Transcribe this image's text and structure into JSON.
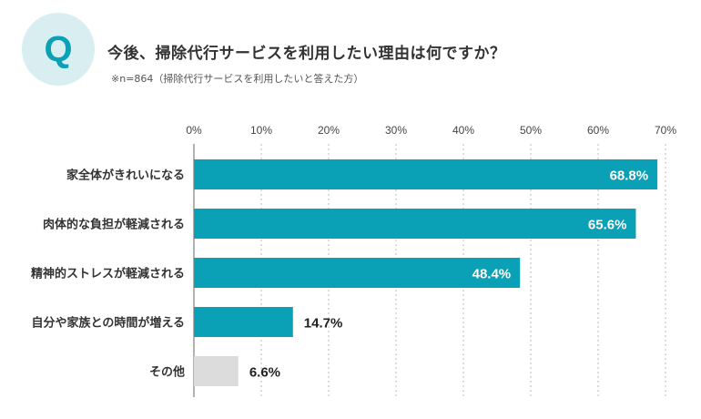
{
  "header": {
    "badge": "Q",
    "title": "今後、掃除代行サービスを利用したい理由は何ですか？",
    "note": "※n=864（掃除代行サービスを利用したいと答えた方）"
  },
  "colors": {
    "primary": "#0aa0b5",
    "other": "#dcdcdc",
    "badge_bg": "#d9eef0",
    "grid": "#bbbbbb"
  },
  "chart_data": {
    "type": "bar",
    "orientation": "horizontal",
    "title": "今後、掃除代行サービスを利用したい理由は何ですか？",
    "categories": [
      "家全体がきれいになる",
      "肉体的な負担が軽減される",
      "精神的ストレスが軽減される",
      "自分や家族との時間が増える",
      "その他"
    ],
    "values": [
      68.8,
      65.6,
      48.4,
      14.7,
      6.6
    ],
    "value_labels": [
      "68.8%",
      "65.6%",
      "48.4%",
      "14.7%",
      "6.6%"
    ],
    "xlim": [
      0,
      70
    ],
    "ticks": [
      0,
      10,
      20,
      30,
      40,
      50,
      60,
      70
    ],
    "tick_labels": [
      "0%",
      "10%",
      "20%",
      "30%",
      "40%",
      "50%",
      "60%",
      "70%"
    ],
    "grid": true,
    "xlabel": "",
    "ylabel": ""
  }
}
